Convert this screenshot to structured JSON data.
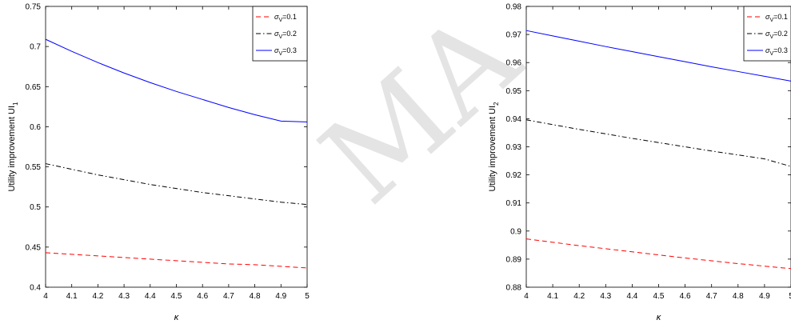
{
  "chart_data": [
    {
      "type": "line",
      "title": "",
      "xlabel": "κ",
      "ylabel": "Utility improvement UI",
      "ylabel_sub": "1",
      "xlim": [
        4,
        5
      ],
      "ylim": [
        0.4,
        0.75
      ],
      "x_ticks": [
        "4",
        "4.1",
        "4.2",
        "4.3",
        "4.4",
        "4.5",
        "4.6",
        "4.7",
        "4.8",
        "4.9",
        "5"
      ],
      "y_ticks": [
        "0.4",
        "0.45",
        "0.5",
        "0.55",
        "0.6",
        "0.65",
        "0.7",
        "0.75"
      ],
      "x": [
        4,
        4.1,
        4.2,
        4.3,
        4.4,
        4.5,
        4.6,
        4.7,
        4.8,
        4.9,
        5
      ],
      "legend_position": "top-right",
      "grid": false,
      "series": [
        {
          "name": "σV=0.1",
          "legend_sym": "σ",
          "legend_sub": "V",
          "legend_val": "=0.1",
          "color": "#ff0000",
          "dash": "6,4",
          "values": [
            0.443,
            0.441,
            0.439,
            0.437,
            0.435,
            0.433,
            0.431,
            0.429,
            0.428,
            0.426,
            0.424
          ]
        },
        {
          "name": "σV=0.2",
          "legend_sym": "σ",
          "legend_sub": "V",
          "legend_val": "=0.2",
          "color": "#000000",
          "dash": "6,3,1.5,3",
          "values": [
            0.554,
            0.547,
            0.54,
            0.534,
            0.528,
            0.523,
            0.518,
            0.514,
            0.51,
            0.506,
            0.503
          ]
        },
        {
          "name": "σV=0.3",
          "legend_sym": "σ",
          "legend_sub": "V",
          "legend_val": "=0.3",
          "color": "#0000ff",
          "dash": "",
          "values": [
            0.709,
            0.694,
            0.68,
            0.667,
            0.655,
            0.644,
            0.634,
            0.624,
            0.615,
            0.607,
            0.606
          ]
        }
      ]
    },
    {
      "type": "line",
      "title": "",
      "xlabel": "κ",
      "ylabel": "Utility improvement UI",
      "ylabel_sub": "2",
      "xlim": [
        4,
        5
      ],
      "ylim": [
        0.88,
        0.98
      ],
      "x_ticks": [
        "4",
        "4.1",
        "4.2",
        "4.3",
        "4.4",
        "4.5",
        "4.6",
        "4.7",
        "4.8",
        "4.9",
        "5"
      ],
      "y_ticks": [
        "0.88",
        "0.89",
        "0.9",
        "0.91",
        "0.92",
        "0.93",
        "0.94",
        "0.95",
        "0.96",
        "0.97",
        "0.98"
      ],
      "x": [
        4,
        4.1,
        4.2,
        4.3,
        4.4,
        4.5,
        4.6,
        4.7,
        4.8,
        4.9,
        5
      ],
      "legend_position": "top-right",
      "grid": false,
      "series": [
        {
          "name": "σV=0.1",
          "legend_sym": "σ",
          "legend_sub": "V",
          "legend_val": "=0.1",
          "color": "#ff0000",
          "dash": "6,4",
          "values": [
            0.8972,
            0.896,
            0.8948,
            0.8937,
            0.8926,
            0.8915,
            0.8904,
            0.8894,
            0.8884,
            0.8875,
            0.8866
          ]
        },
        {
          "name": "σV=0.2",
          "legend_sym": "σ",
          "legend_sub": "V",
          "legend_val": "=0.2",
          "color": "#000000",
          "dash": "6,3,1.5,3",
          "values": [
            0.9396,
            0.9379,
            0.9362,
            0.9346,
            0.933,
            0.9315,
            0.93,
            0.9285,
            0.9271,
            0.9257,
            0.923
          ]
        },
        {
          "name": "σV=0.3",
          "legend_sym": "σ",
          "legend_sub": "V",
          "legend_val": "=0.3",
          "color": "#0000ff",
          "dash": "",
          "values": [
            0.9714,
            0.9695,
            0.9676,
            0.9657,
            0.9639,
            0.9621,
            0.9603,
            0.9585,
            0.9568,
            0.9551,
            0.9534
          ]
        }
      ]
    }
  ]
}
